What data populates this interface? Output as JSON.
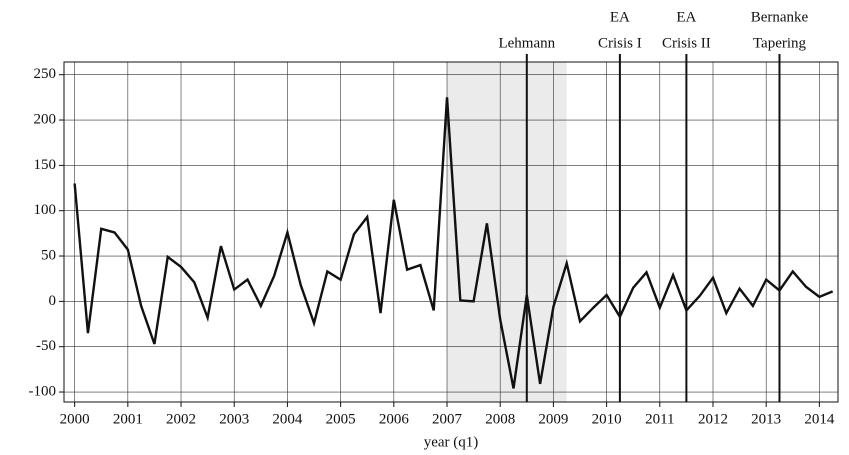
{
  "chart_data": {
    "type": "line",
    "x_label": "year (q1)",
    "x": [
      2000,
      2000.25,
      2000.5,
      2000.75,
      2001,
      2001.25,
      2001.5,
      2001.75,
      2002,
      2002.25,
      2002.5,
      2002.75,
      2003,
      2003.25,
      2003.5,
      2003.75,
      2004,
      2004.25,
      2004.5,
      2004.75,
      2005,
      2005.25,
      2005.5,
      2005.75,
      2006,
      2006.25,
      2006.5,
      2006.75,
      2007,
      2007.25,
      2007.5,
      2007.75,
      2008,
      2008.25,
      2008.5,
      2008.75,
      2009,
      2009.25,
      2009.5,
      2009.75,
      2010,
      2010.25,
      2010.5,
      2010.75,
      2011,
      2011.25,
      2011.5,
      2011.75,
      2012,
      2012.25,
      2012.5,
      2012.75,
      2013,
      2013.25,
      2013.5,
      2013.75,
      2014,
      2014.25
    ],
    "series": [
      {
        "color": "#111111",
        "values": [
          130,
          -35,
          80,
          76,
          57,
          -5,
          -47,
          49,
          38,
          21,
          -18,
          61,
          13,
          24,
          -5,
          28,
          76,
          18,
          -24,
          33,
          24,
          74,
          93,
          -13,
          112,
          35,
          40,
          -10,
          225,
          1,
          0,
          86,
          -20,
          -96,
          7,
          -91,
          -6,
          42,
          -22,
          -7,
          7,
          -17,
          15,
          32,
          -7,
          29,
          -10,
          6,
          26,
          -13,
          14,
          -5,
          24,
          12,
          33,
          16,
          5,
          11
        ]
      }
    ],
    "shaded_span": [
      2007,
      2009.25
    ],
    "events": [
      {
        "x": 2008.5,
        "label": [
          "Lehmann"
        ]
      },
      {
        "x": 2010.25,
        "label": [
          "EA",
          "Crisis I"
        ]
      },
      {
        "x": 2011.5,
        "label": [
          "EA",
          "Crisis II"
        ]
      },
      {
        "x": 2013.25,
        "label": [
          "Bernanke",
          "Tapering"
        ]
      }
    ],
    "xlim": [
      1999.8,
      2014.35
    ],
    "ylim": [
      -111,
      264
    ],
    "xticks": [
      2000,
      2001,
      2002,
      2003,
      2004,
      2005,
      2006,
      2007,
      2008,
      2009,
      2010,
      2011,
      2012,
      2013,
      2014
    ],
    "yticks": [
      -100,
      -50,
      0,
      50,
      100,
      150,
      200,
      250
    ],
    "grid": true
  }
}
